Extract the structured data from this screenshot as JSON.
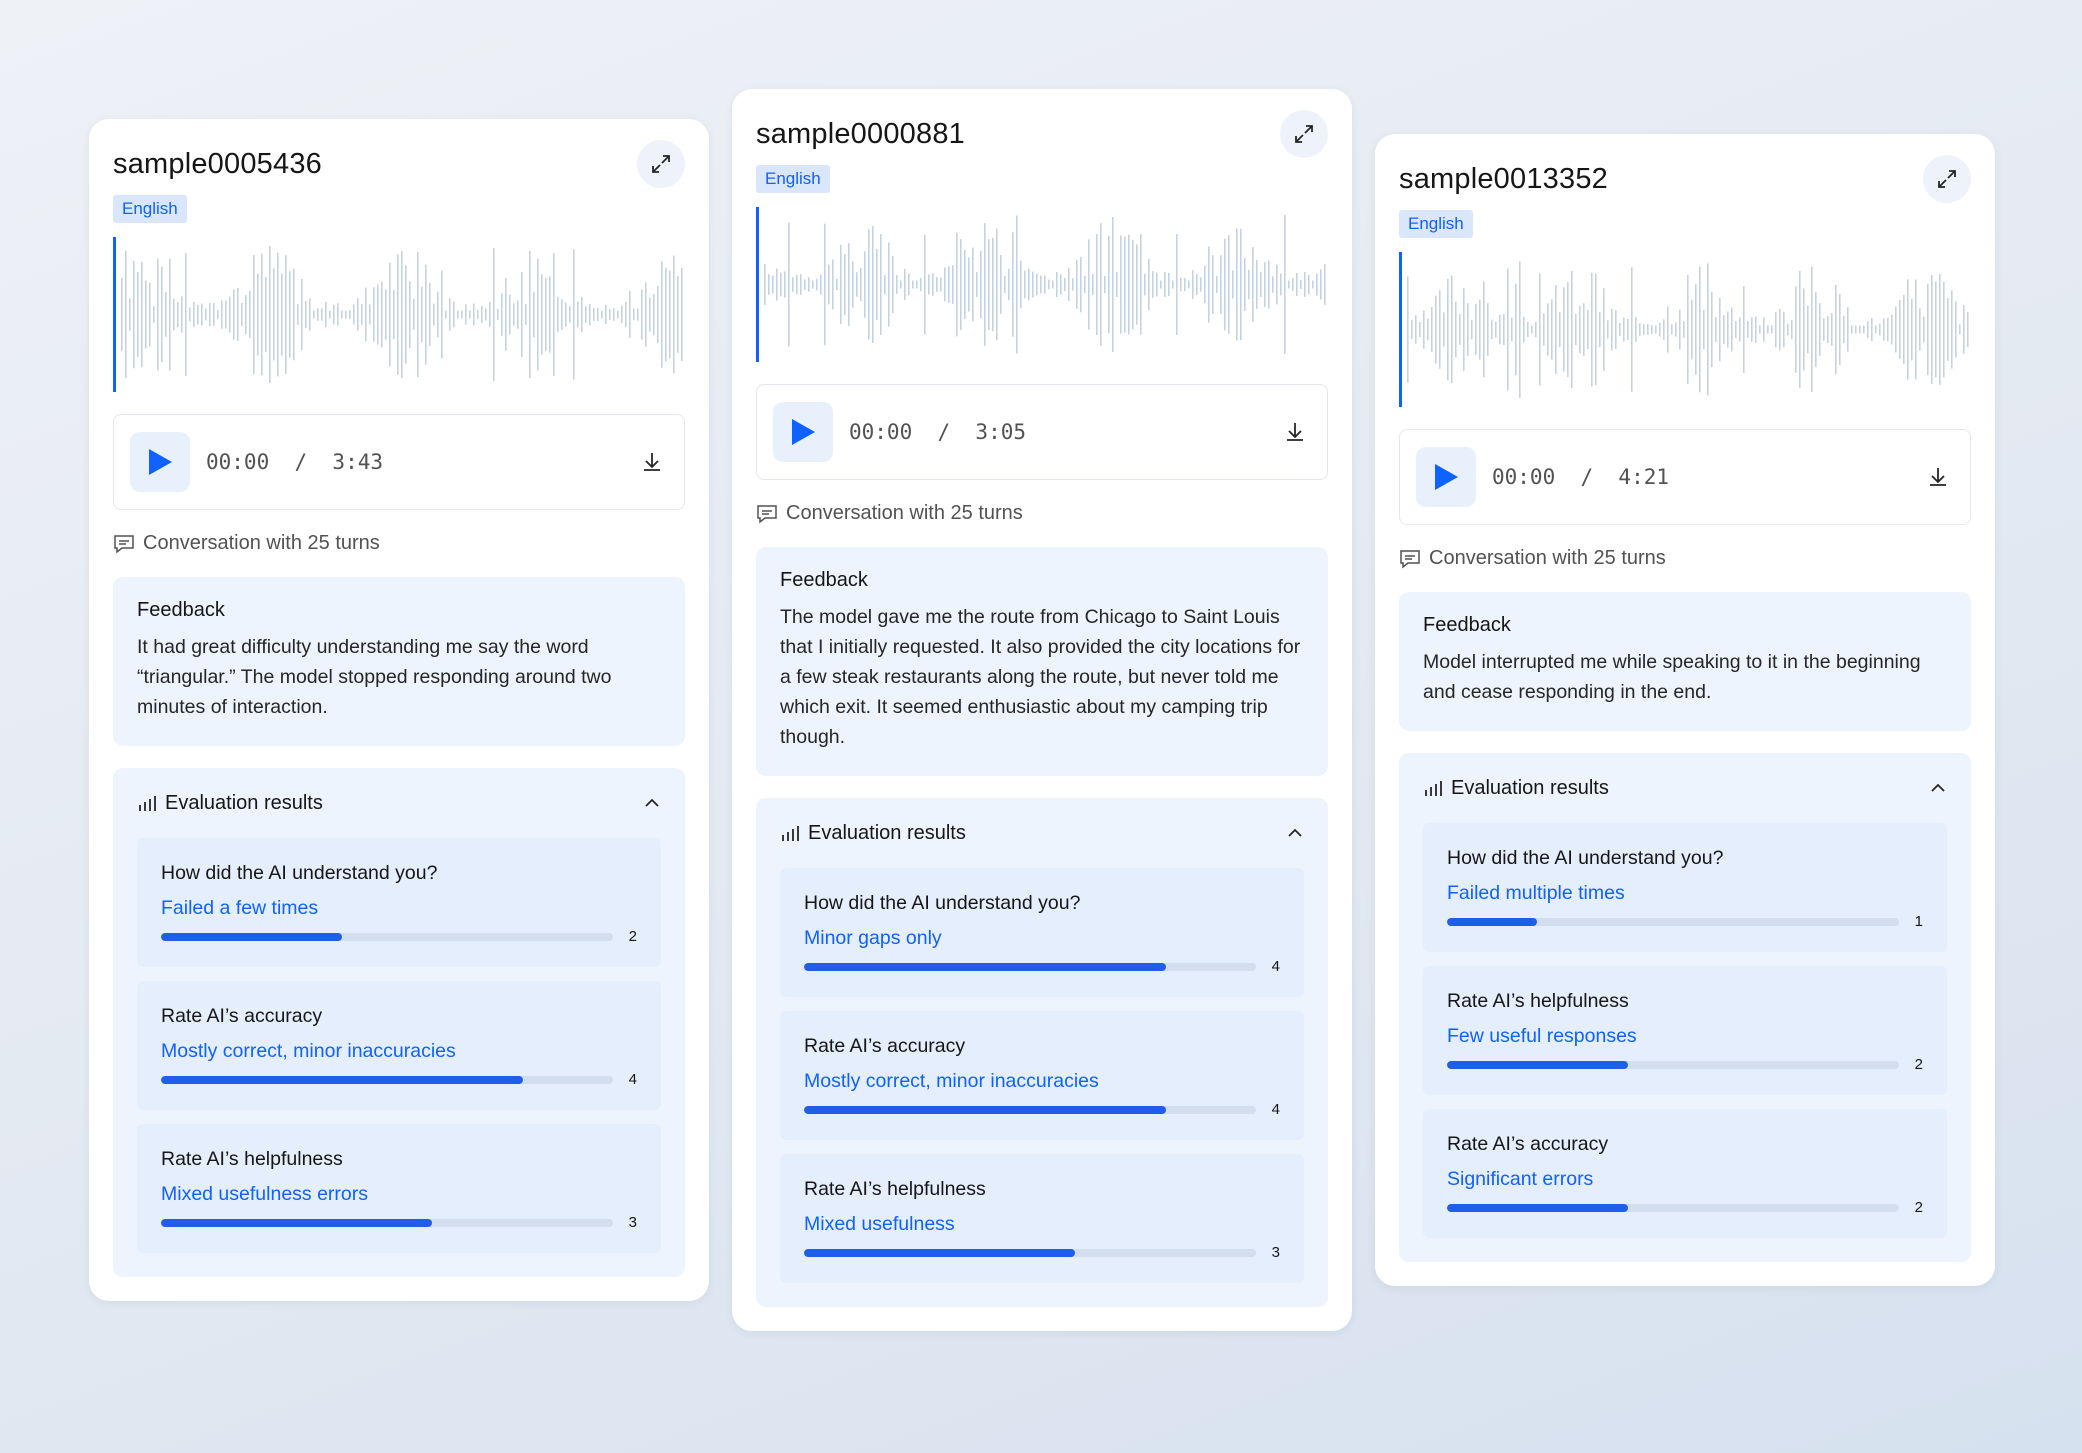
{
  "colors": {
    "accent": "#0f62fe",
    "bar_fill": "#1f5ee8",
    "track": "#d2ddee",
    "wave": "#c7d2e0",
    "panel_bg": "#eef4fd"
  },
  "icons": [
    "expand-icon",
    "play-icon",
    "download-icon",
    "chat-icon",
    "bar-chart-icon",
    "chevron-up-icon"
  ],
  "cards": [
    {
      "title": "sample0005436",
      "language": "English",
      "time": "00:00  /  3:43",
      "turns": "Conversation with 25 turns",
      "feedback_title": "Feedback",
      "feedback": "It had great difficulty understanding me say the word “triangular.” The model stopped responding around two minutes of interaction.",
      "eval_title": "Evaluation results",
      "metrics": [
        {
          "question": "How did the AI understand you?",
          "answer": "Failed a few times",
          "score": "2",
          "fraction": 0.4
        },
        {
          "question": "Rate AI’s accuracy",
          "answer": "Mostly correct, minor inaccuracies",
          "score": "4",
          "fraction": 0.8
        },
        {
          "question": "Rate AI’s helpfulness",
          "answer": "Mixed usefulness errors",
          "score": "3",
          "fraction": 0.6
        }
      ]
    },
    {
      "title": "sample0000881",
      "language": "English",
      "time": "00:00  /  3:05",
      "turns": "Conversation with 25 turns",
      "feedback_title": "Feedback",
      "feedback": "The model gave me the route from Chicago to Saint Louis that I initially requested. It also provided the city locations for a few steak restaurants along the route, but never told me which exit. It seemed enthusiastic about my camping trip though.",
      "eval_title": "Evaluation results",
      "metrics": [
        {
          "question": "How did the AI understand you?",
          "answer": "Minor gaps only",
          "score": "4",
          "fraction": 0.8
        },
        {
          "question": "Rate AI’s accuracy",
          "answer": "Mostly correct, minor inaccuracies",
          "score": "4",
          "fraction": 0.8
        },
        {
          "question": "Rate AI’s helpfulness",
          "answer": "Mixed usefulness",
          "score": "3",
          "fraction": 0.6
        }
      ]
    },
    {
      "title": "sample0013352",
      "language": "English",
      "time": "00:00  /  4:21",
      "turns": "Conversation with 25 turns",
      "feedback_title": "Feedback",
      "feedback": "Model interrupted me while speaking to it in the beginning and cease responding in the end.",
      "eval_title": "Evaluation results",
      "metrics": [
        {
          "question": "How did the AI understand you?",
          "answer": "Failed multiple times",
          "score": "1",
          "fraction": 0.2
        },
        {
          "question": "Rate AI’s helpfulness",
          "answer": "Few useful responses",
          "score": "2",
          "fraction": 0.4
        },
        {
          "question": "Rate AI’s accuracy",
          "answer": "Significant errors",
          "score": "2",
          "fraction": 0.4
        }
      ]
    }
  ]
}
